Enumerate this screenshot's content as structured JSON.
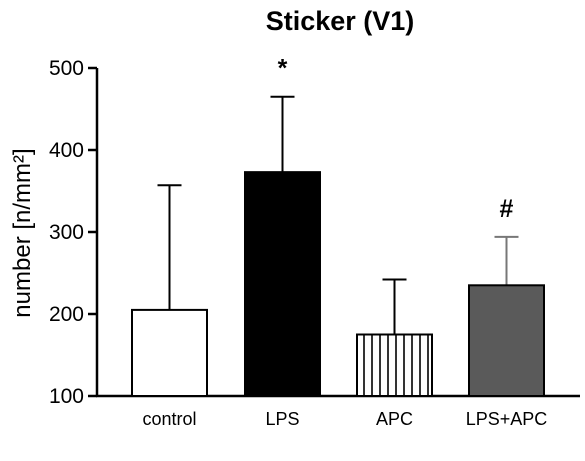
{
  "chart_data": {
    "type": "bar",
    "title": "Sticker (V1)",
    "ylabel": "number [n/mm²]",
    "xlabel": "",
    "ylim": [
      100,
      500
    ],
    "yticks": [
      100,
      200,
      300,
      400,
      500
    ],
    "grid": false,
    "categories": [
      "control",
      "LPS",
      "APC",
      "LPS+APC"
    ],
    "values": [
      205,
      373,
      175,
      235
    ],
    "errors": [
      152,
      92,
      67,
      59
    ],
    "fills": [
      "white",
      "black",
      "vertical-hatch",
      "dark-gray"
    ],
    "colors": {
      "black": "#000000",
      "dark_gray": "#5a5a5a",
      "error_gray": "#777777"
    },
    "annotations": [
      "",
      "*",
      "",
      "#"
    ]
  }
}
